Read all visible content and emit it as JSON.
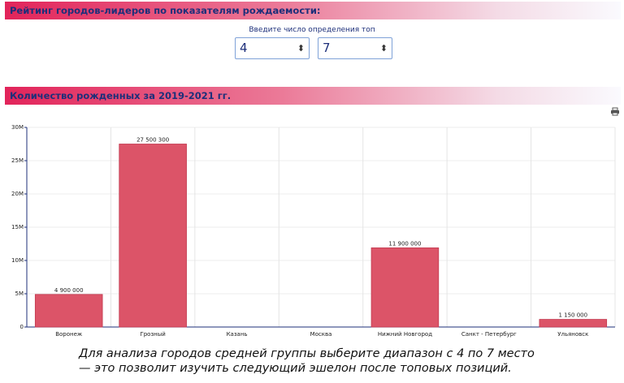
{
  "header": {
    "title": "Рейтинг городов-лидеров по показателям рождаемости:"
  },
  "controls": {
    "label": "Введите число определения топ",
    "from": "4",
    "to": "7"
  },
  "chart_data": {
    "type": "bar",
    "title": "Количество рожденных за 2019-2021 гг.",
    "categories": [
      "Воронеж",
      "Грозный",
      "Казань",
      "Москва",
      "Нижний Новгород",
      "Санкт - Петербург",
      "Ульяновск"
    ],
    "values": [
      4900000,
      27500300,
      0,
      0,
      11900000,
      0,
      1150000
    ],
    "value_labels": [
      "4 900 000",
      "27 500 300",
      null,
      null,
      "11 900 000",
      null,
      "1 150 000"
    ],
    "color": "#dc5468",
    "ylim": [
      0,
      30000000
    ],
    "yticks": [
      0,
      {
        "value": 5000000,
        "label": "5M"
      },
      {
        "value": 10000000,
        "label": "10M"
      },
      {
        "value": 15000000,
        "label": "15M"
      },
      {
        "value": 20000000,
        "label": "20M"
      },
      {
        "value": 25000000,
        "label": "25M"
      },
      {
        "value": 30000000,
        "label": "30M"
      }
    ],
    "grid": true
  },
  "caption": [
    "Для анализа городов средней группы выберите диапазон с 4 по 7 место",
    "— это позволит изучить следующий эшелон после топовых позиций."
  ]
}
